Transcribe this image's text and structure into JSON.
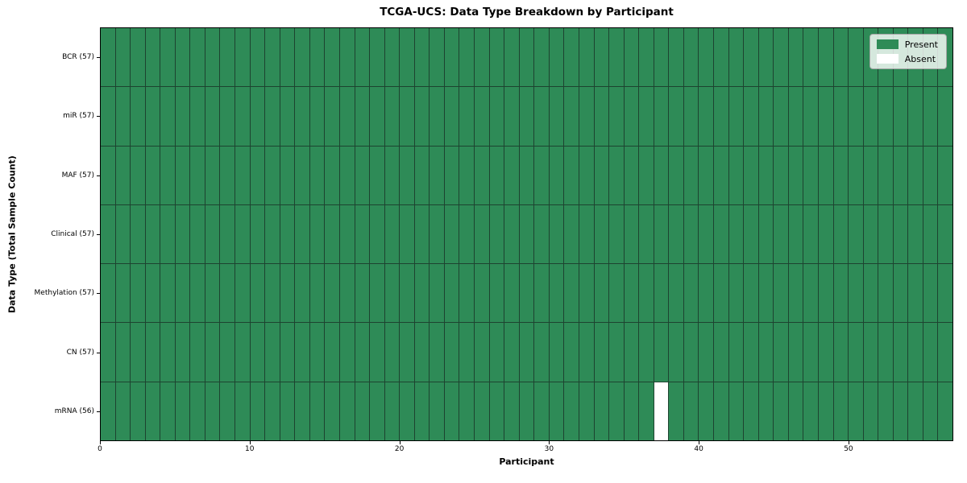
{
  "figure": {
    "title": "TCGA-UCS: Data Type Breakdown by Participant",
    "xlabel": "Participant",
    "ylabel": "Data Type (Total Sample Count)"
  },
  "legend": {
    "items": [
      {
        "label": "Present",
        "color": "#2E8B57"
      },
      {
        "label": "Absent",
        "color": "#FFFFFF"
      }
    ]
  },
  "chart_data": {
    "type": "heatmap",
    "title": "TCGA-UCS: Data Type Breakdown by Participant",
    "xlabel": "Participant",
    "ylabel": "Data Type (Total Sample Count)",
    "x_range": [
      0,
      57
    ],
    "x_ticks": [
      0,
      10,
      20,
      30,
      40,
      50
    ],
    "x_tick_labels": [
      "0",
      "10",
      "20",
      "30",
      "40",
      "50"
    ],
    "n_participants": 57,
    "rows": [
      {
        "label": "BCR (57)",
        "data_type": "BCR",
        "total_samples": 57,
        "absent_participants": []
      },
      {
        "label": "miR (57)",
        "data_type": "miR",
        "total_samples": 57,
        "absent_participants": []
      },
      {
        "label": "MAF (57)",
        "data_type": "MAF",
        "total_samples": 57,
        "absent_participants": []
      },
      {
        "label": "Clinical (57)",
        "data_type": "Clinical",
        "total_samples": 57,
        "absent_participants": []
      },
      {
        "label": "Methylation (57)",
        "data_type": "Methylation",
        "total_samples": 57,
        "absent_participants": []
      },
      {
        "label": "CN (57)",
        "data_type": "CN",
        "total_samples": 57,
        "absent_participants": []
      },
      {
        "label": "mRNA (56)",
        "data_type": "mRNA",
        "total_samples": 56,
        "absent_participants": [
          37
        ]
      }
    ],
    "colors": {
      "present": "#2E8B57",
      "absent": "#FFFFFF",
      "grid_line": "#1d4330",
      "spine": "#000000",
      "legend_background": "rgba(255,255,255,0.8)"
    },
    "legend": [
      "Present",
      "Absent"
    ],
    "legend_position": "upper right",
    "grid": "cell-edges"
  }
}
